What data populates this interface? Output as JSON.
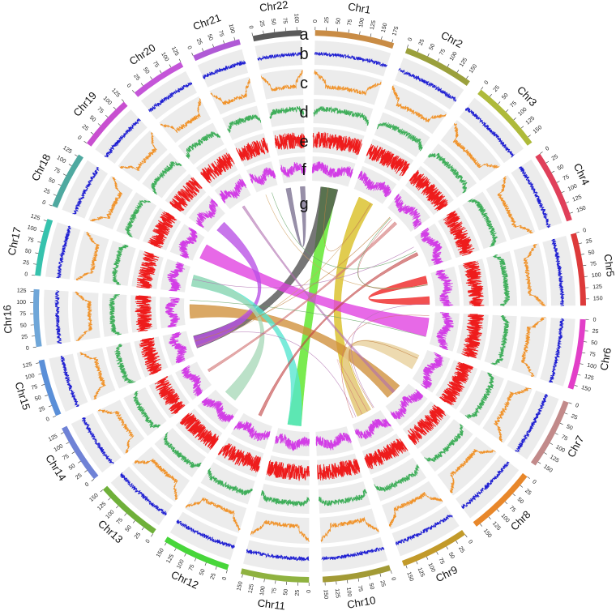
{
  "figure": {
    "track_labels": [
      "a",
      "b",
      "c",
      "d",
      "e",
      "f",
      "g"
    ],
    "track_colors": {
      "b": "#1f1fd2",
      "c": "#f0932b",
      "d": "#3fae5a",
      "e": "#ee1c1c",
      "f": "#d23ee6"
    },
    "background_track": "#ececec"
  },
  "chromosomes": [
    {
      "name": "Chr1",
      "length": 180,
      "color": "#c98c45",
      "ticks": [
        "0",
        "25",
        "50",
        "75",
        "100",
        "125",
        "150",
        "175"
      ]
    },
    {
      "name": "Chr2",
      "length": 160,
      "color": "#9ba03c",
      "ticks": [
        "0",
        "25",
        "50",
        "75",
        "100",
        "125",
        "150"
      ]
    },
    {
      "name": "Chr3",
      "length": 165,
      "color": "#aeba3a",
      "ticks": [
        "0",
        "25",
        "50",
        "75",
        "100",
        "125",
        "150"
      ]
    },
    {
      "name": "Chr4",
      "length": 165,
      "color": "#e0405a",
      "ticks": [
        "0",
        "25",
        "50",
        "75",
        "100",
        "125",
        "150"
      ]
    },
    {
      "name": "Chr5",
      "length": 165,
      "color": "#dd3a3a",
      "ticks": [
        "0",
        "25",
        "50",
        "75",
        "100",
        "125",
        "150"
      ]
    },
    {
      "name": "Chr6",
      "length": 160,
      "color": "#e23fc8",
      "ticks": [
        "0",
        "25",
        "50",
        "75",
        "100",
        "125",
        "150"
      ]
    },
    {
      "name": "Chr7",
      "length": 160,
      "color": "#c28a8a",
      "ticks": [
        "0",
        "25",
        "50",
        "75",
        "100",
        "125",
        "150"
      ]
    },
    {
      "name": "Chr8",
      "length": 160,
      "color": "#e8872a",
      "ticks": [
        "0",
        "25",
        "50",
        "75",
        "100",
        "125",
        "150"
      ]
    },
    {
      "name": "Chr9",
      "length": 155,
      "color": "#c29a2a",
      "ticks": [
        "0",
        "25",
        "50",
        "75",
        "100",
        "125",
        "150"
      ]
    },
    {
      "name": "Chr10",
      "length": 155,
      "color": "#a29a35",
      "ticks": [
        "0",
        "25",
        "50",
        "75",
        "100",
        "125",
        "150"
      ]
    },
    {
      "name": "Chr11",
      "length": 155,
      "color": "#8fb240",
      "ticks": [
        "0",
        "25",
        "50",
        "75",
        "100",
        "125",
        "150"
      ]
    },
    {
      "name": "Chr12",
      "length": 155,
      "color": "#47d63a",
      "ticks": [
        "0",
        "25",
        "50",
        "75",
        "100",
        "125",
        "150"
      ]
    },
    {
      "name": "Chr13",
      "length": 150,
      "color": "#6fb03a",
      "ticks": [
        "0",
        "25",
        "50",
        "75",
        "100",
        "125",
        "150"
      ]
    },
    {
      "name": "Chr14",
      "length": 135,
      "color": "#6f82d6",
      "ticks": [
        "0",
        "25",
        "50",
        "75",
        "100",
        "125"
      ]
    },
    {
      "name": "Chr15",
      "length": 130,
      "color": "#5a8fd8",
      "ticks": [
        "0",
        "25",
        "50",
        "75",
        "100",
        "125"
      ]
    },
    {
      "name": "Chr16",
      "length": 130,
      "color": "#6fa6d8",
      "ticks": [
        "0",
        "25",
        "50",
        "75",
        "100",
        "125"
      ]
    },
    {
      "name": "Chr17",
      "length": 130,
      "color": "#36c2ad",
      "ticks": [
        "0",
        "25",
        "50",
        "75",
        "100",
        "125"
      ]
    },
    {
      "name": "Chr18",
      "length": 130,
      "color": "#4fa9a0",
      "ticks": [
        "0",
        "25",
        "50",
        "75",
        "100",
        "125"
      ]
    },
    {
      "name": "Chr19",
      "length": 125,
      "color": "#c84fd0",
      "ticks": [
        "0",
        "25",
        "50",
        "75",
        "100",
        "125"
      ]
    },
    {
      "name": "Chr20",
      "length": 125,
      "color": "#c455d8",
      "ticks": [
        "0",
        "25",
        "50",
        "75",
        "100",
        "125"
      ]
    },
    {
      "name": "Chr21",
      "length": 110,
      "color": "#b05ad6",
      "ticks": [
        "0",
        "25",
        "50",
        "75",
        "100"
      ]
    },
    {
      "name": "Chr22",
      "length": 110,
      "color": "#5a5a5a",
      "ticks": [
        "0",
        "25",
        "50",
        "75",
        "100"
      ]
    }
  ],
  "links": [
    {
      "from": "Chr22",
      "to": "Chr22",
      "color": "#7a7090",
      "width": 0.5
    },
    {
      "from": "Chr5",
      "to": "Chr5",
      "color": "#ee1f1f",
      "width": 0.55
    },
    {
      "from": "Chr1",
      "to": "Chr11",
      "color": "#55e61f",
      "width": 0.45
    },
    {
      "from": "Chr1",
      "to": "Chr15",
      "color": "#505050",
      "width": 0.5
    },
    {
      "from": "Chr2",
      "to": "Chr9",
      "color": "#d8be1f",
      "width": 0.5
    },
    {
      "from": "Chr18",
      "to": "Chr6",
      "color": "#e03fe0",
      "width": 0.6
    },
    {
      "from": "Chr16",
      "to": "Chr8",
      "color": "#d08f3a",
      "width": 0.55
    },
    {
      "from": "Chr19",
      "to": "Chr15",
      "color": "#b84fe6",
      "width": 0.45
    },
    {
      "from": "Chr17",
      "to": "Chr11",
      "color": "#55e6d0",
      "width": 0.45
    },
    {
      "from": "Chr17",
      "to": "Chr13",
      "color": "#a8d8b8",
      "width": 0.45
    },
    {
      "from": "Chr7",
      "to": "Chr9",
      "color": "#e8cf9a",
      "width": 0.5
    },
    {
      "from": "Chr3",
      "to": "Chr14",
      "color": "#d07070",
      "width": 0.1
    },
    {
      "from": "Chr4",
      "to": "Chr12",
      "color": "#c04040",
      "width": 0.1
    },
    {
      "from": "Chr20",
      "to": "Chr8",
      "color": "#b070b0",
      "width": 0.1
    }
  ]
}
